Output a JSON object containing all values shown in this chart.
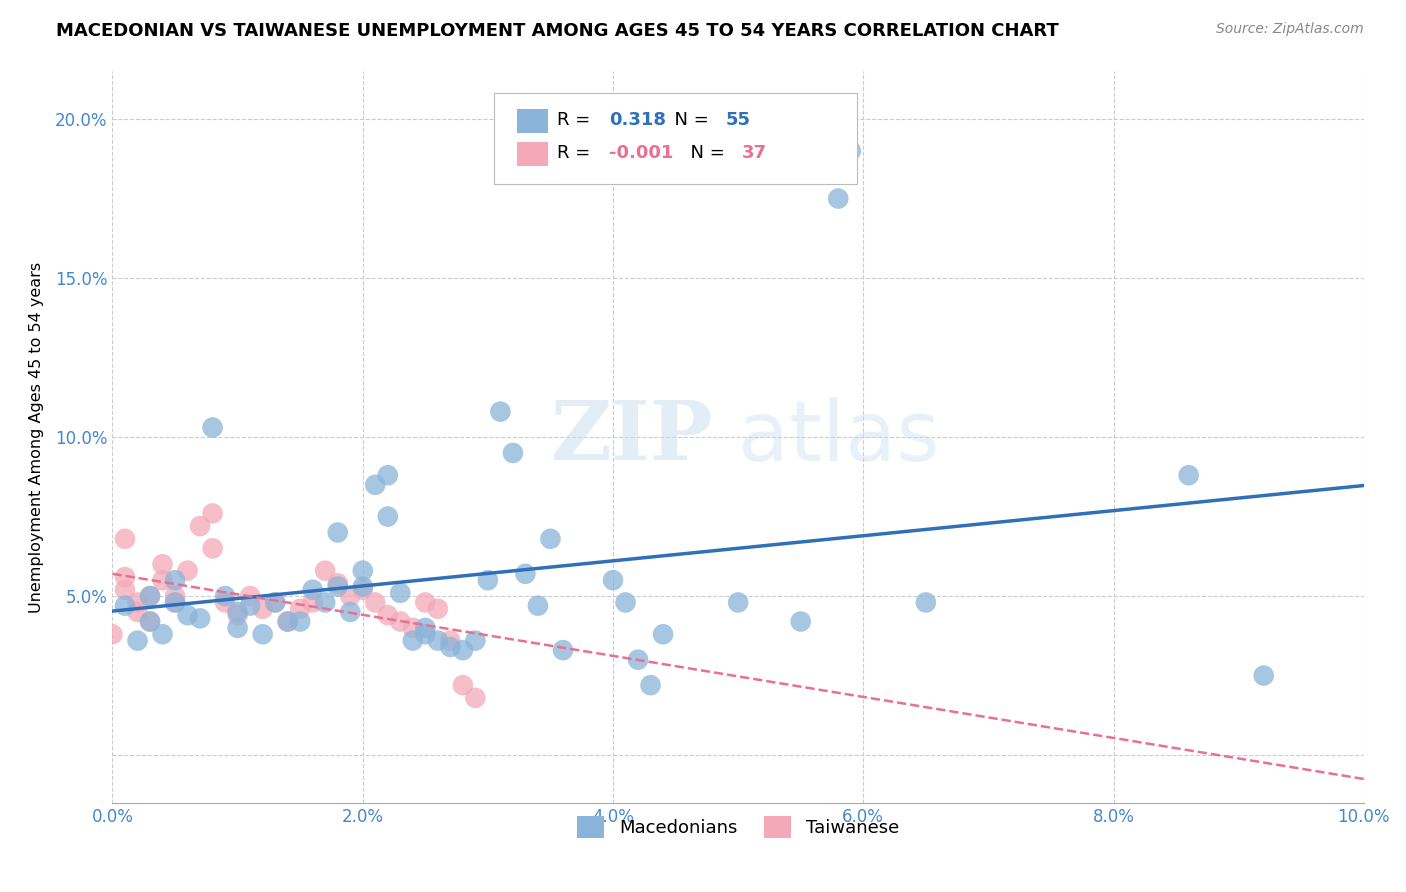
{
  "title": "MACEDONIAN VS TAIWANESE UNEMPLOYMENT AMONG AGES 45 TO 54 YEARS CORRELATION CHART",
  "source": "Source: ZipAtlas.com",
  "ylabel": "Unemployment Among Ages 45 to 54 years",
  "xlim": [
    0.0,
    0.1
  ],
  "ylim": [
    -0.015,
    0.215
  ],
  "xticks": [
    0.0,
    0.02,
    0.04,
    0.06,
    0.08,
    0.1
  ],
  "yticks": [
    0.0,
    0.05,
    0.1,
    0.15,
    0.2
  ],
  "ytick_labels": [
    "",
    "5.0%",
    "10.0%",
    "15.0%",
    "20.0%"
  ],
  "xtick_labels": [
    "0.0%",
    "2.0%",
    "4.0%",
    "6.0%",
    "8.0%",
    "10.0%"
  ],
  "mac_R": "0.318",
  "mac_N": "55",
  "tai_R": "-0.001",
  "tai_N": "37",
  "mac_color": "#8ab4d9",
  "tai_color": "#f4a8b8",
  "mac_line_color": "#3070b8",
  "tai_line_color": "#e87090",
  "bg_color": "#ffffff",
  "grid_color": "#cccccc",
  "tick_color": "#4488cc",
  "macedonians_x": [
    0.001,
    0.002,
    0.003,
    0.003,
    0.004,
    0.005,
    0.005,
    0.006,
    0.007,
    0.008,
    0.009,
    0.01,
    0.01,
    0.011,
    0.012,
    0.013,
    0.014,
    0.015,
    0.016,
    0.017,
    0.018,
    0.018,
    0.019,
    0.02,
    0.02,
    0.021,
    0.022,
    0.022,
    0.023,
    0.024,
    0.025,
    0.025,
    0.026,
    0.027,
    0.028,
    0.029,
    0.03,
    0.031,
    0.032,
    0.033,
    0.034,
    0.035,
    0.036,
    0.04,
    0.041,
    0.042,
    0.043,
    0.044,
    0.05,
    0.055,
    0.058,
    0.059,
    0.065,
    0.086,
    0.092
  ],
  "macedonians_y": [
    0.047,
    0.036,
    0.05,
    0.042,
    0.038,
    0.055,
    0.048,
    0.044,
    0.043,
    0.103,
    0.05,
    0.045,
    0.04,
    0.047,
    0.038,
    0.048,
    0.042,
    0.042,
    0.052,
    0.048,
    0.053,
    0.07,
    0.045,
    0.053,
    0.058,
    0.085,
    0.075,
    0.088,
    0.051,
    0.036,
    0.038,
    0.04,
    0.036,
    0.034,
    0.033,
    0.036,
    0.055,
    0.108,
    0.095,
    0.057,
    0.047,
    0.068,
    0.033,
    0.055,
    0.048,
    0.03,
    0.022,
    0.038,
    0.048,
    0.042,
    0.175,
    0.19,
    0.048,
    0.088,
    0.025
  ],
  "taiwanese_x": [
    0.0,
    0.001,
    0.001,
    0.001,
    0.002,
    0.002,
    0.003,
    0.003,
    0.004,
    0.004,
    0.005,
    0.005,
    0.006,
    0.007,
    0.008,
    0.008,
    0.009,
    0.01,
    0.011,
    0.012,
    0.013,
    0.014,
    0.015,
    0.016,
    0.017,
    0.018,
    0.019,
    0.02,
    0.021,
    0.022,
    0.023,
    0.024,
    0.025,
    0.026,
    0.027,
    0.028,
    0.029
  ],
  "taiwanese_y": [
    0.038,
    0.052,
    0.056,
    0.068,
    0.045,
    0.048,
    0.042,
    0.05,
    0.055,
    0.06,
    0.05,
    0.048,
    0.058,
    0.072,
    0.065,
    0.076,
    0.048,
    0.044,
    0.05,
    0.046,
    0.048,
    0.042,
    0.046,
    0.048,
    0.058,
    0.054,
    0.05,
    0.052,
    0.048,
    0.044,
    0.042,
    0.04,
    0.048,
    0.046,
    0.036,
    0.022,
    0.018
  ]
}
